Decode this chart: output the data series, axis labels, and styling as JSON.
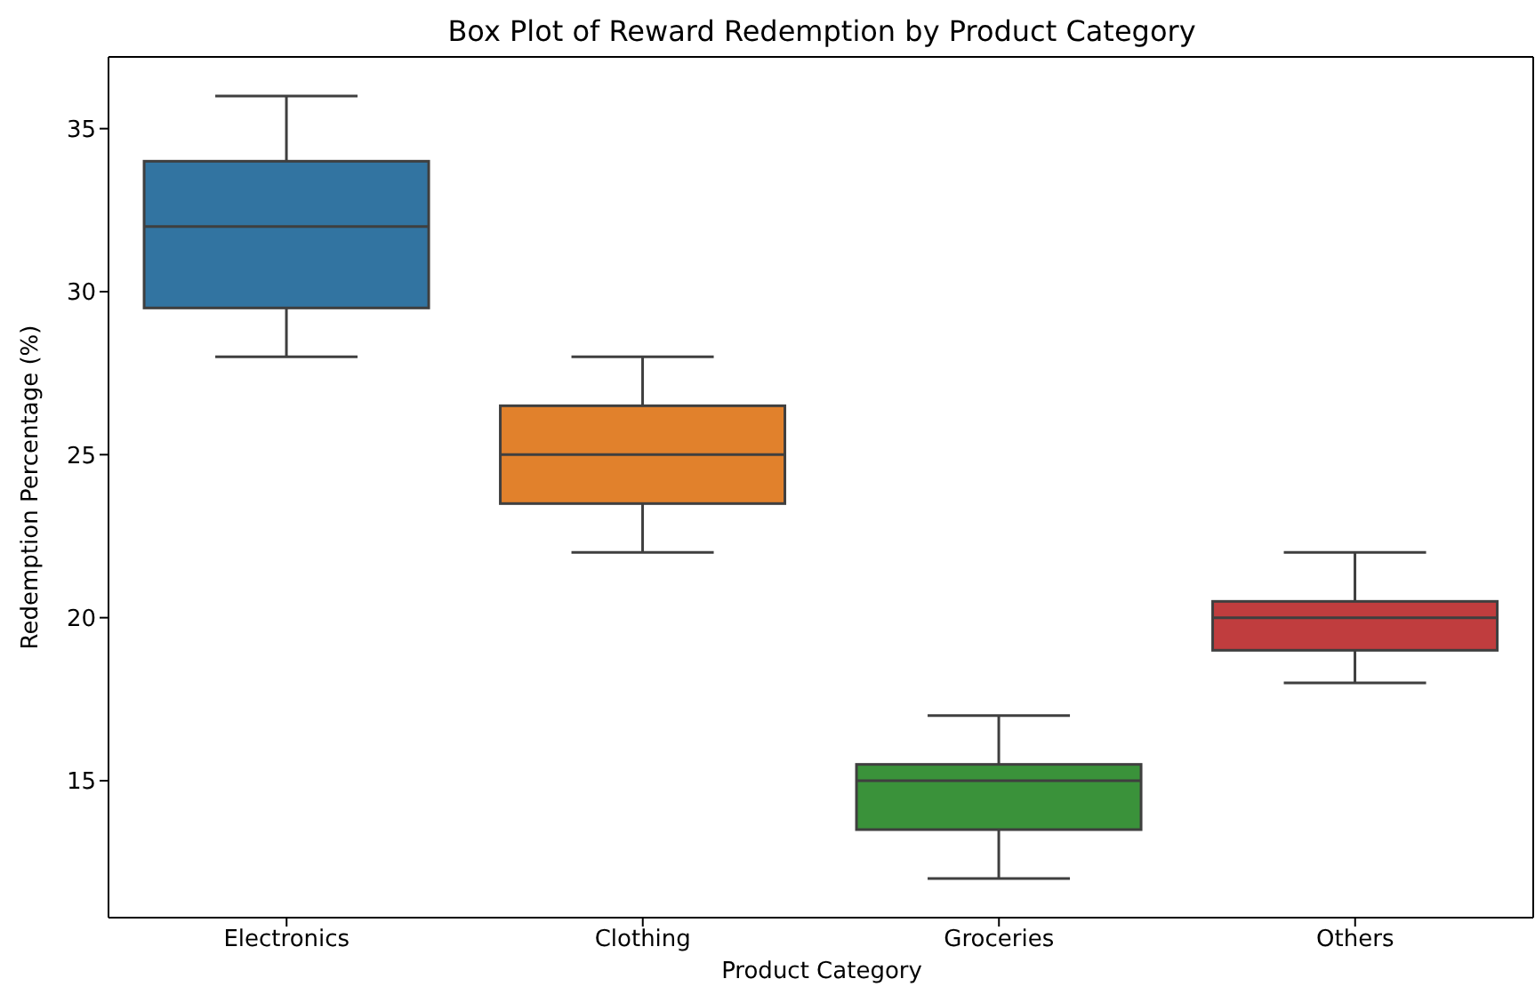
{
  "chart_data": {
    "type": "box",
    "title": "Box Plot of Reward Redemption by Product Category",
    "xlabel": "Product Category",
    "ylabel": "Redemption Percentage (%)",
    "categories": [
      "Electronics",
      "Clothing",
      "Groceries",
      "Others"
    ],
    "boxes": [
      {
        "low": 28,
        "q1": 29.5,
        "median": 32,
        "q3": 34,
        "high": 36
      },
      {
        "low": 22,
        "q1": 23.5,
        "median": 25,
        "q3": 26.5,
        "high": 28
      },
      {
        "low": 12,
        "q1": 13.5,
        "median": 15,
        "q3": 15.5,
        "high": 17
      },
      {
        "low": 18,
        "q1": 19,
        "median": 20,
        "q3": 20.5,
        "high": 22
      }
    ],
    "colors": [
      "#3274a1",
      "#e1812c",
      "#3a923a",
      "#c03d3e"
    ],
    "ylim": [
      10.8,
      37.2
    ],
    "yticks": [
      15,
      20,
      25,
      30,
      35
    ]
  }
}
